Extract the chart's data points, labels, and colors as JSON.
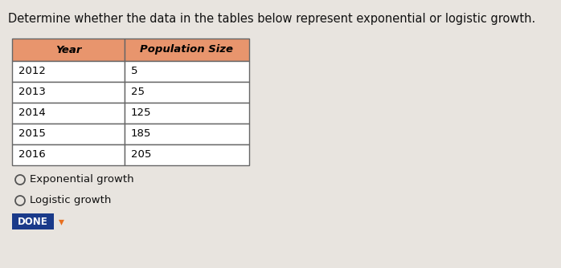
{
  "title": "Determine whether the data in the tables below represent exponential or logistic growth.",
  "header": [
    "Year",
    "Population Size"
  ],
  "rows": [
    [
      "2012",
      "5"
    ],
    [
      "2013",
      "25"
    ],
    [
      "2014",
      "125"
    ],
    [
      "2015",
      "185"
    ],
    [
      "2016",
      "205"
    ]
  ],
  "header_bg_color": "#E8956D",
  "header_text_color": "#000000",
  "row_bg_color": "#FFFFFF",
  "table_border_color": "#666666",
  "title_fontsize": 10.5,
  "table_fontsize": 9.5,
  "option1": "Exponential growth",
  "option2": "Logistic growth",
  "done_bg": "#1A3A8A",
  "done_text": "DONE",
  "done_check_color": "#E87020",
  "background_color": "#C8BFB5",
  "page_bg_color": "#E8E4DF",
  "title_color": "#111111",
  "radio_color": "#555555"
}
